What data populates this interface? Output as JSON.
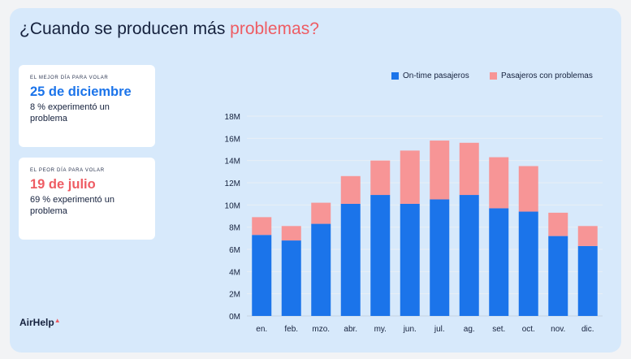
{
  "title": {
    "prefix": "¿Cuando se producen más ",
    "highlight": "problemas?"
  },
  "best_day": {
    "label": "EL MEJOR DÍA PARA VOLAR",
    "day": "25 de diciembre",
    "description": "8 % experimentó un problema"
  },
  "worst_day": {
    "label": "EL PEOR DÍA PARA VOLAR",
    "day": "19 de julio",
    "description": "69 % experimentó un problema"
  },
  "brand": {
    "name": "AirHelp",
    "mark": "▲"
  },
  "colors": {
    "ontime": "#1b74ea",
    "problems": "#f79596",
    "highlight": "#ee5c63"
  },
  "chart_data": {
    "type": "bar",
    "stacked": true,
    "title": "¿Cuando se producen más problemas?",
    "xlabel": "",
    "ylabel": "",
    "categories": [
      "en.",
      "feb.",
      "mzo.",
      "abr.",
      "my.",
      "jun.",
      "jul.",
      "ag.",
      "set.",
      "oct.",
      "nov.",
      "dic."
    ],
    "series": [
      {
        "name": "On-time pasajeros",
        "values": [
          7.3,
          6.8,
          8.3,
          10.1,
          10.9,
          10.1,
          10.5,
          10.9,
          9.7,
          9.4,
          7.2,
          6.3
        ]
      },
      {
        "name": "Pasajeros con problemas",
        "values": [
          1.6,
          1.3,
          1.9,
          2.5,
          3.1,
          4.8,
          5.3,
          4.7,
          4.6,
          4.1,
          2.1,
          1.8
        ]
      }
    ],
    "ylim": [
      0,
      18
    ],
    "yticks": [
      0,
      2,
      4,
      6,
      8,
      10,
      12,
      14,
      16,
      18
    ],
    "ytick_labels": [
      "0M",
      "2M",
      "4M",
      "6M",
      "8M",
      "10M",
      "12M",
      "14M",
      "16M",
      "18M"
    ],
    "grid": true,
    "legend": "top-right"
  }
}
